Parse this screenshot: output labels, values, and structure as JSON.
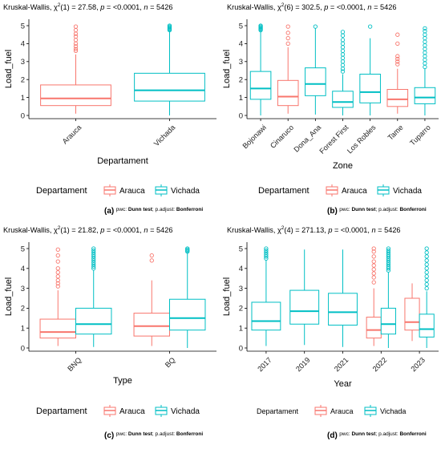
{
  "colors": {
    "Arauca": "#F8766D",
    "Vichada": "#00BFC4",
    "axis": "#000000"
  },
  "chart_data": [
    {
      "type": "boxplot",
      "title": {
        "pre": "Kruskal-Wallis, ",
        "chi": "χ",
        "sup": "2",
        "df": "(1) = 27.58, ",
        "p": "p",
        "pval": " = <0.0001, ",
        "n": "n",
        "nval": " = 5426"
      },
      "xlabel": "Departament",
      "ylabel": "Load_fuel",
      "ylim": [
        0,
        5
      ],
      "yticks": [
        "0",
        "1",
        "2",
        "3",
        "4",
        "5"
      ],
      "categories": [
        "Arauca",
        "Vichada"
      ],
      "legend": {
        "title": "Departament",
        "items": [
          "Arauca",
          "Vichada"
        ]
      },
      "label": "(a)",
      "footer": {
        "pwc": "pwc: ",
        "test": "Dunn test",
        "sep": "; p.adjust: ",
        "adj": "Bonferroni"
      },
      "boxes": [
        {
          "cat": "Arauca",
          "series": "Arauca",
          "pos": 0,
          "min": 0.1,
          "q1": 0.55,
          "median": 0.95,
          "q3": 1.7,
          "max": 3.4,
          "outliers": [
            3.6,
            3.7,
            3.85,
            4.0,
            4.2,
            4.4,
            4.55,
            4.75,
            4.95
          ]
        },
        {
          "cat": "Vichada",
          "series": "Vichada",
          "pos": 0,
          "min": 0.0,
          "q1": 0.8,
          "median": 1.4,
          "q3": 2.35,
          "max": 4.7,
          "outliers": [
            4.75,
            4.8,
            4.85,
            4.9,
            4.95,
            5.0
          ]
        }
      ]
    },
    {
      "type": "boxplot",
      "title": {
        "pre": "Kruskal-Wallis, ",
        "chi": "χ",
        "sup": "2",
        "df": "(6) = 302.5, ",
        "p": "p",
        "pval": " = <0.0001, ",
        "n": "n",
        "nval": " = 5426"
      },
      "xlabel": "Zone",
      "ylabel": "Load_fuel",
      "ylim": [
        0,
        5
      ],
      "yticks": [
        "0",
        "1",
        "2",
        "3",
        "4",
        "5"
      ],
      "categories": [
        "Bojonawi",
        "Cinaruco",
        "Dona_Ana",
        "Forest First",
        "Los Robles",
        "Tame",
        "Tuparro"
      ],
      "legend": {
        "title": "Departament",
        "items": [
          "Arauca",
          "Vichada"
        ]
      },
      "label": "(b)",
      "footer": {
        "pwc": "pwc: ",
        "test": "Dunn test",
        "sep": "; p.adjust: ",
        "adj": "Bonferroni"
      },
      "boxes": [
        {
          "cat": "Bojonawi",
          "series": "Vichada",
          "pos": 0,
          "min": 0.0,
          "q1": 0.9,
          "median": 1.5,
          "q3": 2.45,
          "max": 4.7,
          "outliers": [
            4.75,
            4.8,
            4.85,
            4.9,
            4.95,
            5.0
          ]
        },
        {
          "cat": "Cinaruco",
          "series": "Arauca",
          "pos": 0,
          "min": 0.1,
          "q1": 0.55,
          "median": 1.05,
          "q3": 1.95,
          "max": 3.8,
          "outliers": [
            4.0,
            4.3,
            4.6,
            4.95
          ]
        },
        {
          "cat": "Dona_Ana",
          "series": "Vichada",
          "pos": 0,
          "min": 0.05,
          "q1": 1.1,
          "median": 1.75,
          "q3": 2.65,
          "max": 4.85,
          "outliers": [
            4.95
          ]
        },
        {
          "cat": "Forest First",
          "series": "Vichada",
          "pos": 0,
          "min": 0.0,
          "q1": 0.45,
          "median": 0.75,
          "q3": 1.35,
          "max": 2.3,
          "outliers": [
            2.45,
            2.6,
            2.8,
            3.0,
            3.2,
            3.4,
            3.6,
            3.8,
            4.0,
            4.2,
            4.45,
            4.65
          ]
        },
        {
          "cat": "Los Robles",
          "series": "Vichada",
          "pos": 0,
          "min": 0.0,
          "q1": 0.7,
          "median": 1.3,
          "q3": 2.3,
          "max": 4.3,
          "outliers": [
            4.95
          ]
        },
        {
          "cat": "Tame",
          "series": "Arauca",
          "pos": 0,
          "min": 0.1,
          "q1": 0.5,
          "median": 0.9,
          "q3": 1.45,
          "max": 2.6,
          "outliers": [
            2.85,
            3.0,
            3.15,
            3.3,
            4.0,
            4.5
          ]
        },
        {
          "cat": "Tuparro",
          "series": "Vichada",
          "pos": 0,
          "min": 0.0,
          "q1": 0.65,
          "median": 1.0,
          "q3": 1.55,
          "max": 2.6,
          "outliers": [
            2.7,
            2.9,
            3.1,
            3.3,
            3.5,
            3.7,
            3.9,
            4.1,
            4.3,
            4.5,
            4.7,
            4.85
          ]
        }
      ]
    },
    {
      "type": "boxplot",
      "title": {
        "pre": "Kruskal-Wallis, ",
        "chi": "χ",
        "sup": "2",
        "df": "(1) = 21.82, ",
        "p": "p",
        "pval": " = <0.0001, ",
        "n": "n",
        "nval": " = 5426"
      },
      "xlabel": "Type",
      "ylabel": "Load_fuel",
      "ylim": [
        0,
        5
      ],
      "yticks": [
        "0",
        "1",
        "2",
        "3",
        "4",
        "5"
      ],
      "categories": [
        "BNQ",
        "BQ"
      ],
      "legend": {
        "title": "Departament",
        "items": [
          "Arauca",
          "Vichada"
        ]
      },
      "label": "(c)",
      "footer": {
        "pwc": "pwc: ",
        "test": "Dunn test",
        "sep": "; p.adjust: ",
        "adj": "Bonferroni"
      },
      "boxes": [
        {
          "cat": "BNQ",
          "series": "Arauca",
          "pos": -1,
          "min": 0.1,
          "q1": 0.5,
          "median": 0.8,
          "q3": 1.45,
          "max": 2.9,
          "outliers": [
            3.1,
            3.25,
            3.4,
            3.6,
            3.8,
            4.0,
            4.35,
            4.65,
            4.95
          ]
        },
        {
          "cat": "BNQ",
          "series": "Vichada",
          "pos": 1,
          "min": 0.05,
          "q1": 0.7,
          "median": 1.2,
          "q3": 2.0,
          "max": 3.9,
          "outliers": [
            4.0,
            4.1,
            4.2,
            4.3,
            4.4,
            4.5,
            4.6,
            4.7,
            4.8,
            4.9,
            5.0
          ]
        },
        {
          "cat": "BQ",
          "series": "Arauca",
          "pos": -1,
          "min": 0.1,
          "q1": 0.6,
          "median": 1.1,
          "q3": 1.75,
          "max": 3.4,
          "outliers": [
            4.4,
            4.65
          ]
        },
        {
          "cat": "BQ",
          "series": "Vichada",
          "pos": 1,
          "min": 0.0,
          "q1": 0.9,
          "median": 1.5,
          "q3": 2.45,
          "max": 4.8,
          "outliers": [
            4.85,
            4.9,
            4.95,
            5.0
          ]
        }
      ]
    },
    {
      "type": "boxplot",
      "title": {
        "pre": "Kruskal-Wallis, ",
        "chi": "χ",
        "sup": "2",
        "df": "(4) = 271.13, ",
        "p": "p",
        "pval": " = <0.0001, ",
        "n": "n",
        "nval": " = 5426"
      },
      "xlabel": "Year",
      "ylabel": "Load_fuel",
      "ylim": [
        0,
        5
      ],
      "yticks": [
        "0",
        "1",
        "2",
        "3",
        "4",
        "5"
      ],
      "categories": [
        "2017",
        "2019",
        "2021",
        "2022",
        "2023"
      ],
      "legend": {
        "title": "Departament",
        "items": [
          "Arauca",
          "Vichada"
        ]
      },
      "label": "(d)",
      "footer": {
        "pwc": "pwc: ",
        "test": "Dunn test",
        "sep": "; p.adjust: ",
        "adj": "Bonferroni"
      },
      "boxes": [
        {
          "cat": "2017",
          "series": "Vichada",
          "pos": 0,
          "min": 0.1,
          "q1": 0.9,
          "median": 1.35,
          "q3": 2.3,
          "max": 4.4,
          "outliers": [
            4.5,
            4.6,
            4.7,
            4.8,
            4.9,
            5.0
          ]
        },
        {
          "cat": "2019",
          "series": "Vichada",
          "pos": 0,
          "min": 0.15,
          "q1": 1.2,
          "median": 1.85,
          "q3": 2.9,
          "max": 4.95,
          "outliers": []
        },
        {
          "cat": "2021",
          "series": "Vichada",
          "pos": 0,
          "min": 0.05,
          "q1": 1.15,
          "median": 1.8,
          "q3": 2.75,
          "max": 4.95,
          "outliers": []
        },
        {
          "cat": "2022",
          "series": "Arauca",
          "pos": -1,
          "min": 0.1,
          "q1": 0.5,
          "median": 0.9,
          "q3": 1.55,
          "max": 3.0,
          "outliers": [
            3.3,
            3.55,
            3.75,
            3.95,
            4.15,
            4.35,
            4.6,
            4.85,
            5.0
          ]
        },
        {
          "cat": "2022",
          "series": "Vichada",
          "pos": 1,
          "min": 0.0,
          "q1": 0.7,
          "median": 1.2,
          "q3": 2.0,
          "max": 3.8,
          "outliers": [
            3.9,
            4.0,
            4.1,
            4.2,
            4.3,
            4.4,
            4.5,
            4.6,
            4.7,
            4.8,
            4.9,
            5.0
          ]
        },
        {
          "cat": "2023",
          "series": "Arauca",
          "pos": -1,
          "min": 0.35,
          "q1": 0.9,
          "median": 1.3,
          "q3": 2.5,
          "max": 3.25,
          "outliers": []
        },
        {
          "cat": "2023",
          "series": "Vichada",
          "pos": 1,
          "min": 0.0,
          "q1": 0.55,
          "median": 0.95,
          "q3": 1.7,
          "max": 2.85,
          "outliers": [
            3.0,
            3.2,
            3.4,
            3.6,
            3.8,
            4.0,
            4.2,
            4.4,
            4.6,
            4.8,
            5.0
          ]
        }
      ]
    }
  ]
}
